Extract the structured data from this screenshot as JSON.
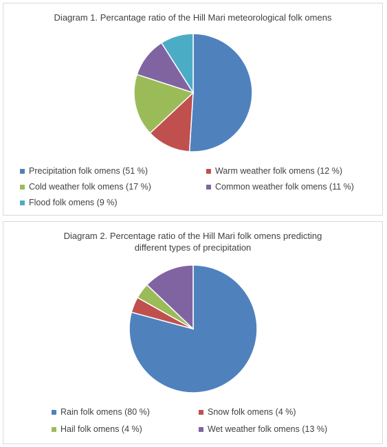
{
  "chart_data": [
    {
      "type": "pie",
      "title": "Diagram 1. Percantage ratio of the Hill Mari meteorological folk omens",
      "categories": [
        "Precipitation folk omens (51 %)",
        "Warm weather folk omens (12 %)",
        "Cold weather folk omens (17 %)",
        "Common weather folk omens  (11 %)",
        "Flood folk omens (9 %)"
      ],
      "values": [
        51,
        12,
        17,
        11,
        9
      ],
      "colors": [
        "#4f81bd",
        "#c0504d",
        "#9bbb59",
        "#8064a2",
        "#4bacc6"
      ],
      "legend_position": "bottom"
    },
    {
      "type": "pie",
      "title": "Diagram 2. Percentage ratio of the Hill Mari folk omens predicting different types of precipitation",
      "categories": [
        "Rain folk omens (80 %)",
        "Snow folk omens (4 %)",
        "Hail folk omens (4 %)",
        "Wet weather folk omens (13 %)"
      ],
      "values": [
        80,
        4,
        4,
        13
      ],
      "colors": [
        "#4f81bd",
        "#c0504d",
        "#9bbb59",
        "#8064a2"
      ],
      "legend_position": "bottom"
    }
  ]
}
